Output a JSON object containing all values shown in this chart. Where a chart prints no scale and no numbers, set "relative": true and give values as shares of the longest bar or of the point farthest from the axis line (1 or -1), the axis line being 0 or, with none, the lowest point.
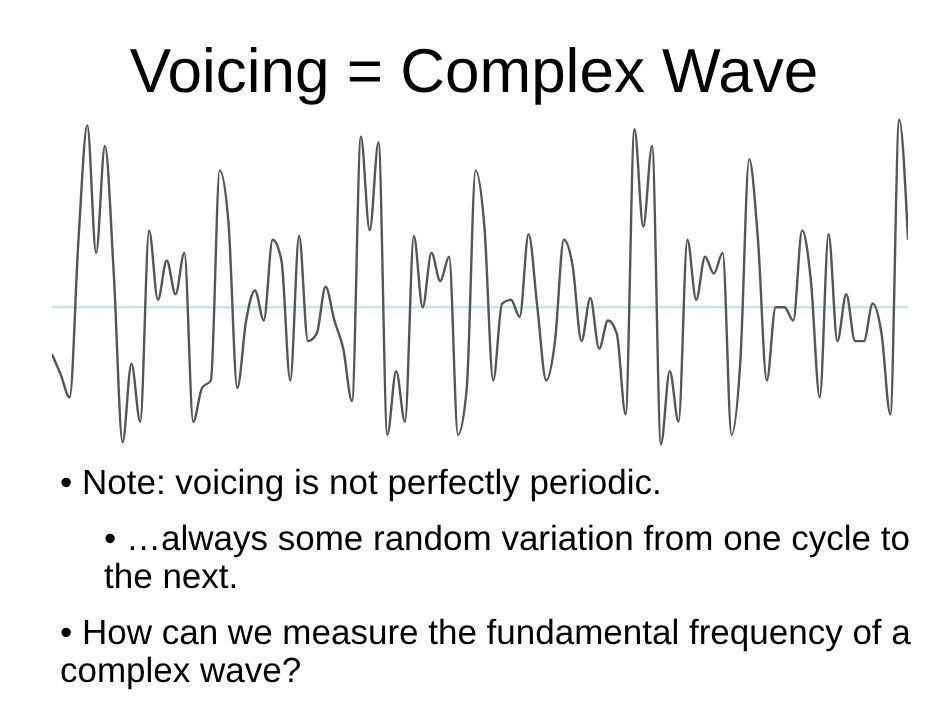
{
  "chart_data": {
    "type": "line",
    "title": "Voicing = Complex Wave",
    "relative": true,
    "tick_labels": false,
    "marker": "none",
    "line_style": "solid",
    "categories": [
      null,
      null,
      null,
      null,
      null,
      null,
      null,
      null,
      null,
      null,
      null,
      null,
      null,
      null,
      null,
      null,
      null,
      null,
      null,
      null,
      null,
      null,
      null,
      null,
      null,
      null,
      null,
      null,
      null,
      null,
      null,
      null,
      null,
      null,
      null,
      null,
      null,
      null,
      null,
      null,
      null,
      null,
      null,
      null,
      null,
      null,
      null,
      null,
      null,
      null,
      null,
      null,
      null,
      null,
      null,
      null,
      null,
      null,
      null,
      null,
      null,
      null,
      null,
      null,
      null,
      null,
      null,
      null,
      null,
      null,
      null,
      null,
      null,
      null,
      null,
      null,
      null,
      null,
      null,
      null,
      null,
      null,
      null,
      null,
      null,
      null,
      null,
      null,
      null,
      null,
      null,
      null,
      null,
      null,
      null,
      null,
      null,
      null
    ],
    "series": [
      {
        "color": "#555555",
        "values": [
          -0.25,
          -0.36,
          -0.48,
          0.36,
          0.97,
          0.29,
          0.86,
          0.18,
          -0.72,
          -0.3,
          -0.61,
          0.41,
          0.04,
          0.25,
          0.07,
          0.29,
          -0.61,
          -0.43,
          -0.39,
          0.73,
          0.45,
          -0.43,
          -0.07,
          0.09,
          -0.07,
          0.36,
          0.25,
          -0.39,
          0.38,
          -0.18,
          -0.14,
          0.11,
          -0.07,
          -0.22,
          -0.5,
          0.91,
          0.41,
          0.88,
          -0.68,
          -0.34,
          -0.61,
          0.38,
          0,
          0.29,
          0.14,
          0.27,
          -0.68,
          -0.43,
          0.73,
          0.43,
          -0.39,
          0.02,
          0.04,
          -0.05,
          0.39,
          0,
          -0.39,
          -0.18,
          0.36,
          0.22,
          -0.18,
          0.05,
          -0.22,
          -0.07,
          -0.14,
          -0.57,
          0.95,
          0.43,
          0.86,
          -0.73,
          -0.34,
          -0.61,
          0.36,
          0.04,
          0.27,
          0.18,
          0.29,
          -0.68,
          -0.29,
          0.79,
          0.36,
          -0.39,
          0,
          0,
          -0.07,
          0.41,
          0.14,
          -0.48,
          0.39,
          -0.18,
          0.07,
          -0.18,
          -0.18,
          0.02,
          -0.14,
          -0.57,
          1,
          0.36
        ]
      }
    ],
    "ref_lines": [
      {
        "axis": "y",
        "value": 0,
        "color": "#b8e4ea"
      }
    ],
    "annotations": [
      "• Note: voicing is not perfectly periodic.",
      "• …always some random variation from one cycle to the next.",
      "• How can we measure the fundamental frequency of a complex wave?"
    ]
  }
}
